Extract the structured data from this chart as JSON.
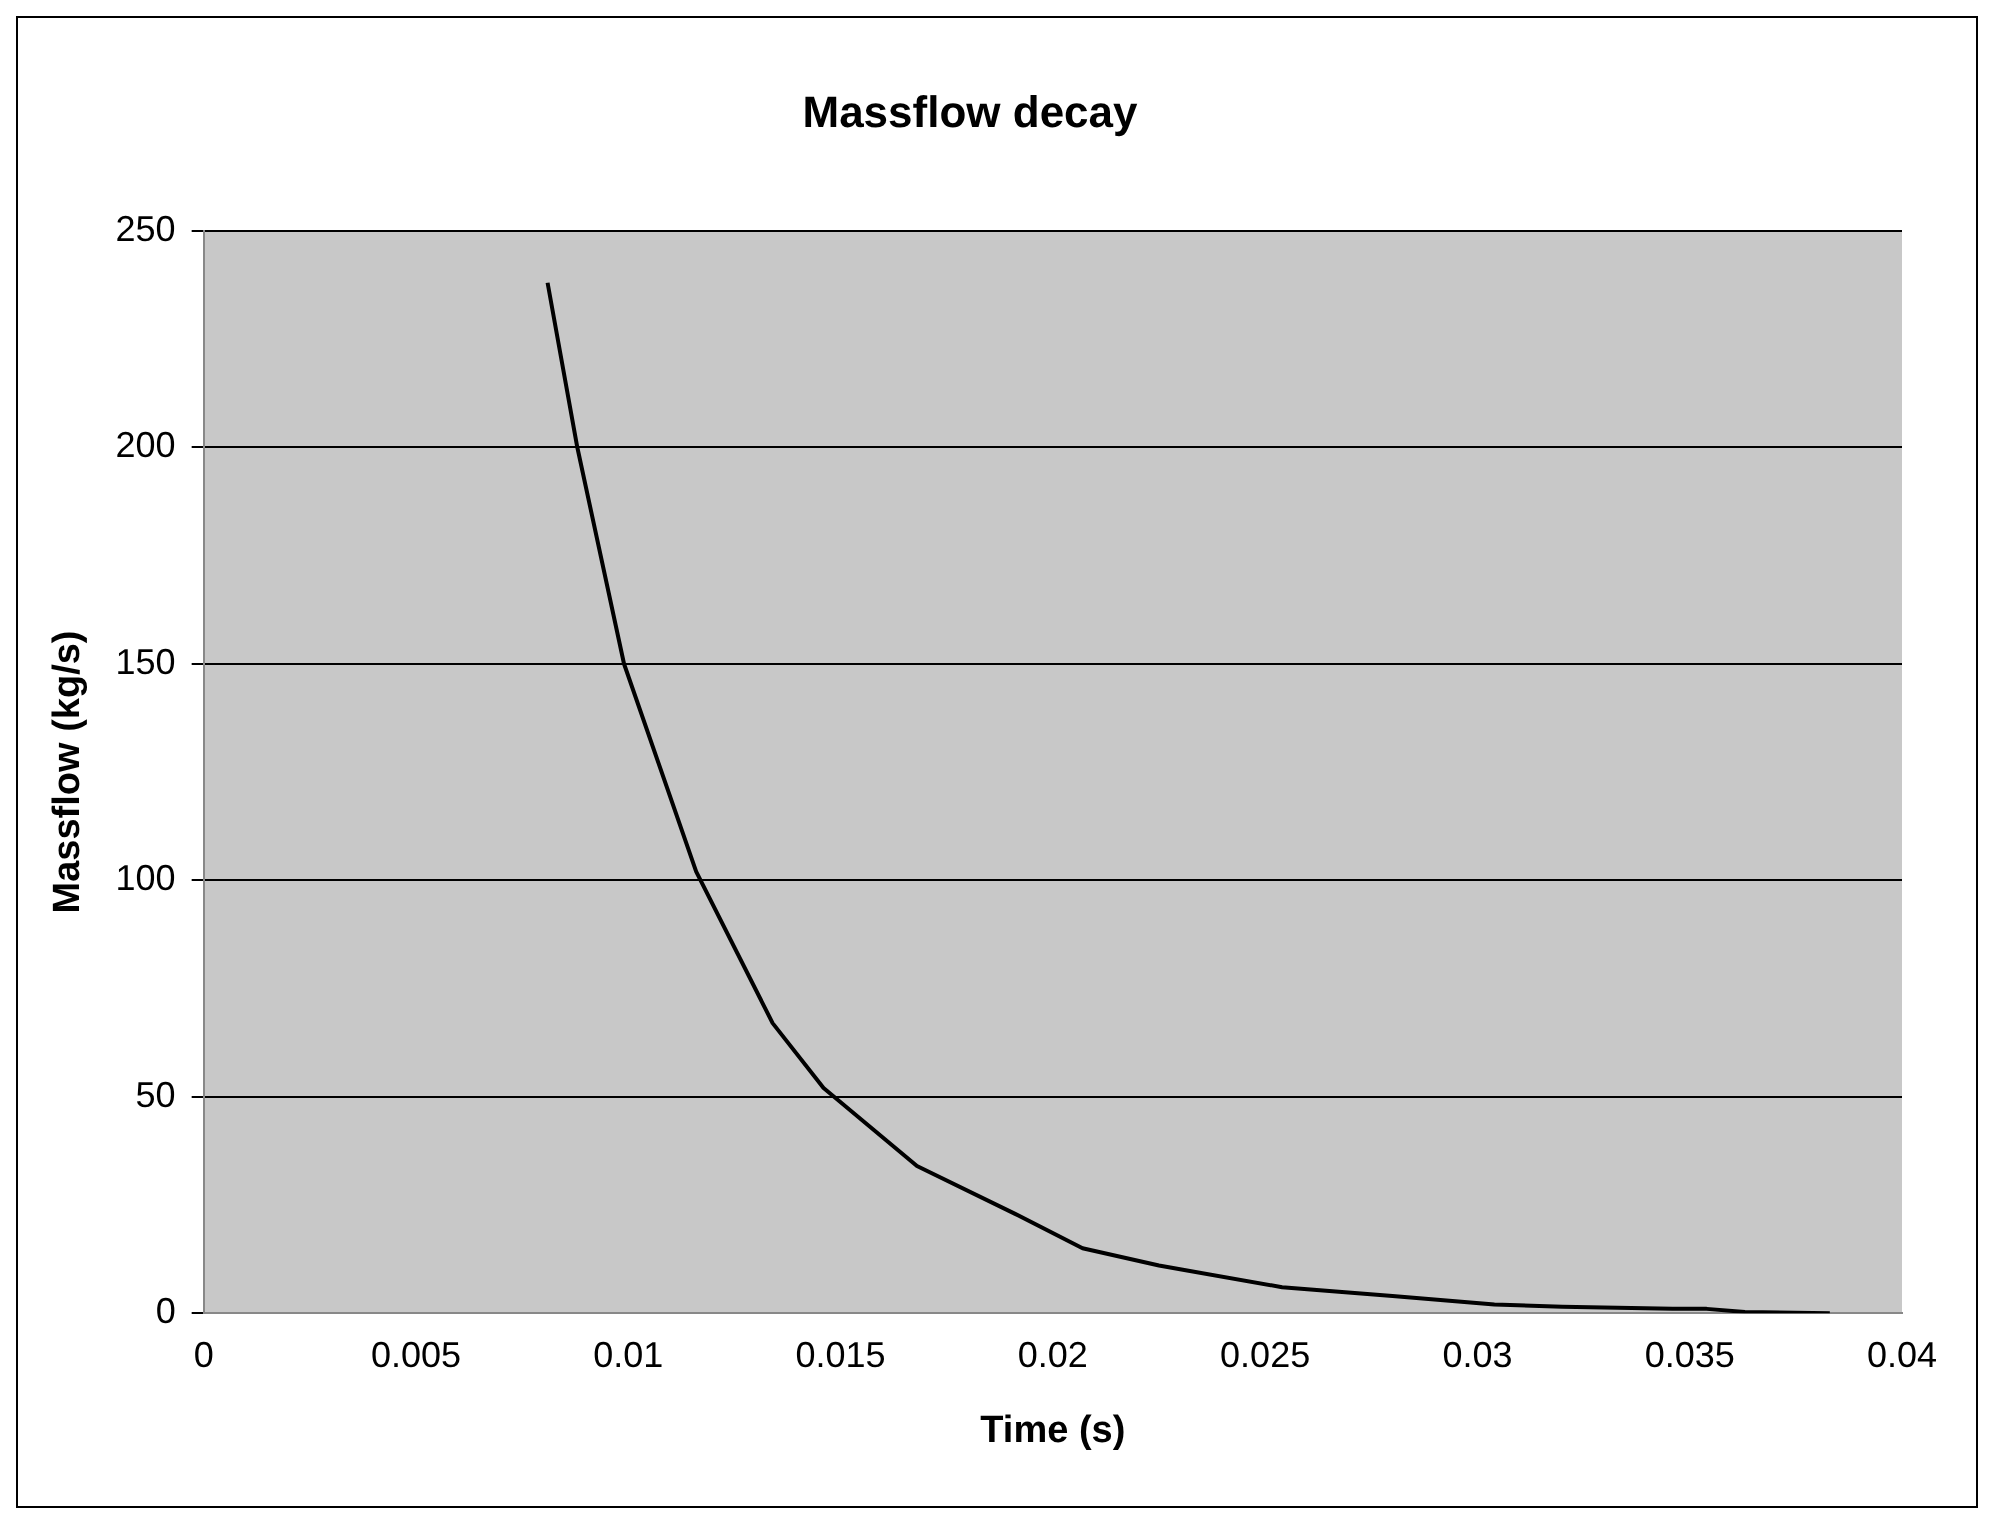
{
  "chart_data": {
    "type": "line",
    "title": "Massflow decay",
    "xlabel": "Time (s)",
    "ylabel": "Massflow (kg/s)",
    "x": [
      0.0081,
      0.0088,
      0.0099,
      0.0116,
      0.0134,
      0.0146,
      0.0168,
      0.0191,
      0.0207,
      0.0225,
      0.0254,
      0.028,
      0.0304,
      0.032,
      0.0346,
      0.0354,
      0.0363,
      0.0383
    ],
    "series": [
      {
        "color": "#000000",
        "values": [
          238,
          200,
          150,
          102,
          67,
          52,
          34,
          23,
          15,
          11,
          6,
          4,
          2,
          1.5,
          1,
          1,
          0.3,
          0
        ]
      }
    ],
    "xlim": [
      0,
      0.04
    ],
    "xticks": [
      0,
      0.005,
      0.01,
      0.015,
      0.02,
      0.025,
      0.03,
      0.035,
      0.04
    ],
    "ylim": [
      0,
      250
    ],
    "yticks": [
      0,
      50,
      100,
      150,
      200,
      250
    ],
    "grid": "y",
    "legend": false,
    "marker": "none",
    "line_style": "solid"
  }
}
